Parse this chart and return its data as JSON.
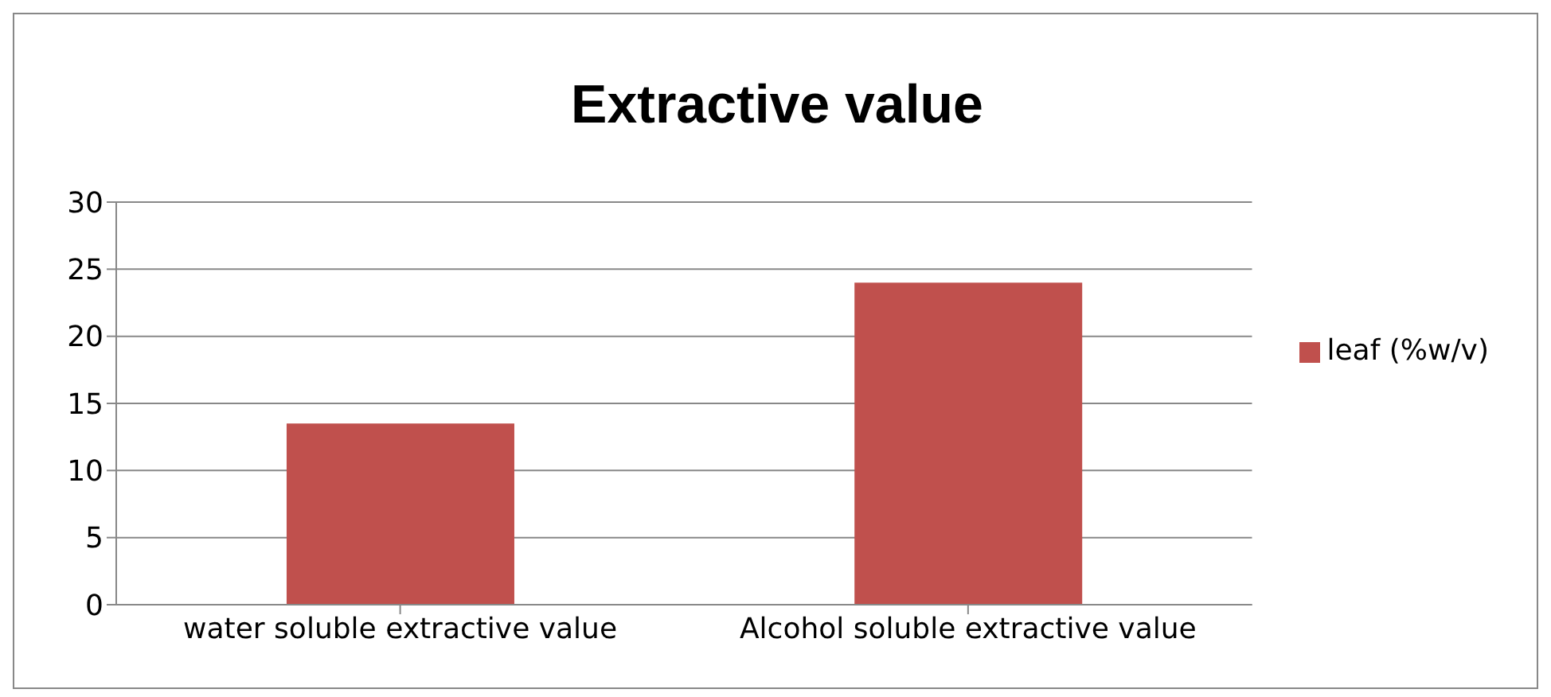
{
  "chart_data": {
    "type": "bar",
    "title": "Extractive value",
    "categories": [
      "water soluble extractive value",
      "Alcohol soluble extractive value"
    ],
    "series": [
      {
        "name": "leaf (%w/v)",
        "color": "#c0504d",
        "values": [
          13.5,
          24
        ]
      }
    ],
    "ylim": [
      0,
      30
    ],
    "yticks": [
      0,
      5,
      10,
      15,
      20,
      25,
      30
    ],
    "grid": "y",
    "legend": "right"
  }
}
